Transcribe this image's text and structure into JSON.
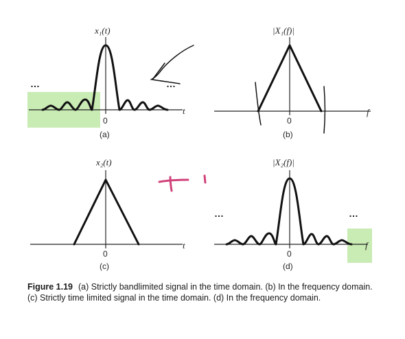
{
  "panels": {
    "a": {
      "title": "x₁(t)",
      "label": "(a)",
      "zero": "0",
      "axis_var": "t",
      "dots_left": "…",
      "dots_right": "…"
    },
    "b": {
      "title": "|X₁(f)|",
      "label": "(b)",
      "zero": "0",
      "axis_var": "f"
    },
    "c": {
      "title": "x₂(t)",
      "label": "(c)",
      "zero": "0",
      "axis_var": "t"
    },
    "d": {
      "title": "|X₂(f)|",
      "label": "(d)",
      "zero": "0",
      "axis_var": "f",
      "dots_left": "…",
      "dots_right": "…"
    }
  },
  "caption": {
    "figure_number": "Figure 1.19",
    "text": "(a) Strictly bandlimited signal in the time domain. (b) In the frequency domain. (c) Strictly time limited signal in the time domain. (d) In the frequency domain."
  },
  "annotations": {
    "highlight_color": "#bfe7a7",
    "pen_color": "#d0427a",
    "ink_color": "#111111"
  }
}
